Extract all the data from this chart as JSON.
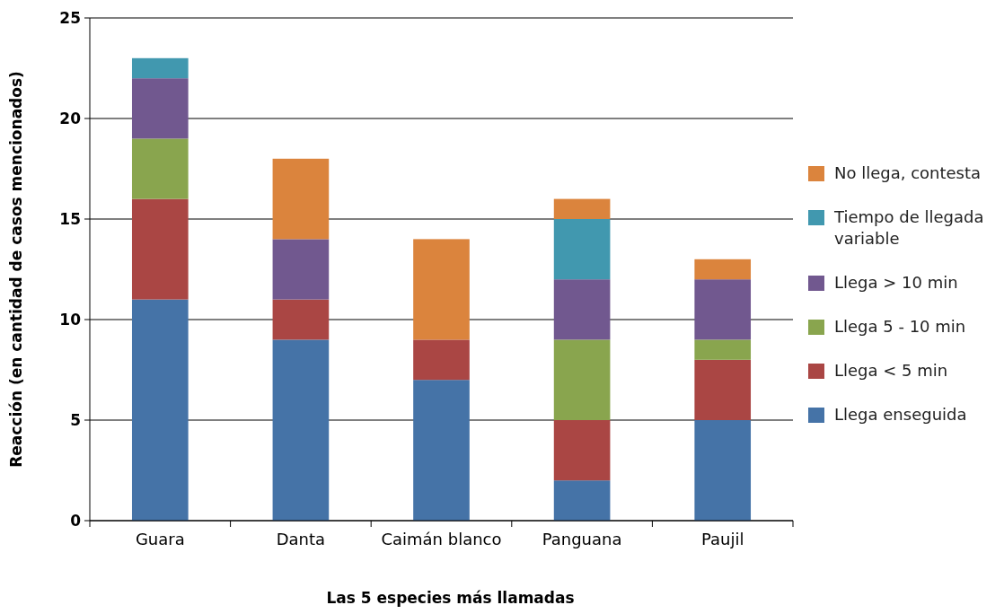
{
  "chart_data": {
    "type": "bar",
    "stacked": true,
    "xlabel": "Las 5 especies más llamadas",
    "ylabel": "Reacción (en cantidad de casos mencionados)",
    "categories": [
      "Guara",
      "Danta",
      "Caimán blanco",
      "Panguana",
      "Paujil"
    ],
    "series": [
      {
        "name": "Llega enseguida",
        "color": "#4573a7",
        "values": [
          11,
          9,
          7,
          2,
          5
        ]
      },
      {
        "name": "Llega < 5 min",
        "color": "#aa4644",
        "values": [
          5,
          2,
          2,
          3,
          3
        ]
      },
      {
        "name": "Llega 5 - 10 min",
        "color": "#89a54e",
        "values": [
          3,
          null,
          null,
          4,
          1
        ]
      },
      {
        "name": "Llega > 10 min",
        "color": "#71588f",
        "values": [
          3,
          3,
          null,
          3,
          3
        ]
      },
      {
        "name": "Tiempo de llegada variable",
        "color": "#4198af",
        "values": [
          1,
          null,
          null,
          3,
          null
        ]
      },
      {
        "name": "No llega, contesta",
        "color": "#db843d",
        "values": [
          null,
          4,
          5,
          1,
          1
        ]
      }
    ],
    "ylim": [
      0,
      25
    ],
    "yticks": [
      0,
      5,
      10,
      15,
      20,
      25
    ],
    "grid": "y",
    "legend": "right"
  }
}
